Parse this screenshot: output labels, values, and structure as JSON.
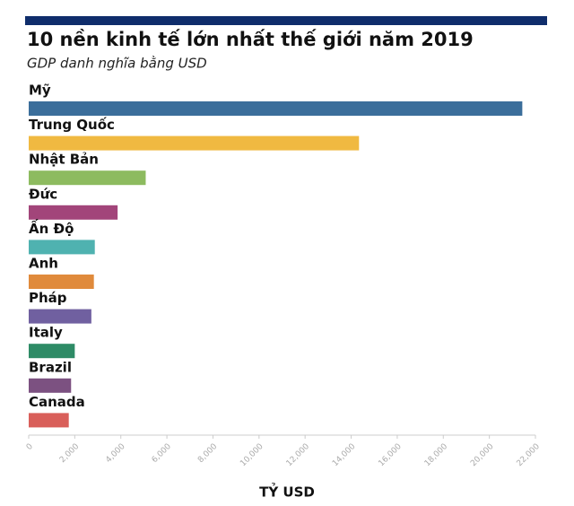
{
  "chart_data": {
    "type": "bar",
    "orientation": "horizontal",
    "title": "10 nền kinh tế lớn nhất thế giới năm 2019",
    "subtitle": "GDP danh nghĩa bằng USD",
    "x_label": "TỶ USD",
    "categories": [
      "Mỹ",
      "Trung Quốc",
      "Nhật Bản",
      "Đức",
      "Ấn Độ",
      "Anh",
      "Pháp",
      "Italy",
      "Brazil",
      "Canada"
    ],
    "values": [
      21430,
      14340,
      5080,
      3860,
      2870,
      2830,
      2720,
      2000,
      1840,
      1740
    ],
    "colors": [
      "#3b6e9b",
      "#f0b941",
      "#8dbb5f",
      "#a2457a",
      "#4fb2b0",
      "#e08a3b",
      "#7060a0",
      "#2e8b66",
      "#7c5181",
      "#d95f5a"
    ],
    "xlim": [
      0,
      22000
    ],
    "xticks": [
      0,
      {
        "value": 2000,
        "label": "2,000"
      },
      {
        "value": 4000,
        "label": "4,000"
      },
      {
        "value": 6000,
        "label": "6,000"
      },
      {
        "value": 8000,
        "label": "8,000"
      },
      {
        "value": 10000,
        "label": "10,000"
      },
      {
        "value": 12000,
        "label": "12,000"
      },
      {
        "value": 14000,
        "label": "14,000"
      },
      {
        "value": 16000,
        "label": "16,000"
      },
      {
        "value": 18000,
        "label": "18,000"
      },
      {
        "value": 20000,
        "label": "20,000"
      },
      {
        "value": 22000,
        "label": "22,000"
      }
    ],
    "grid": false
  }
}
